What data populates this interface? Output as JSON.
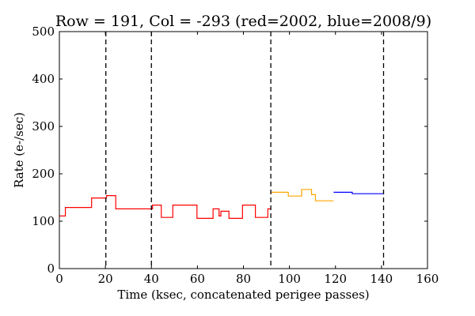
{
  "chart_data": {
    "type": "line",
    "title": "Row = 191, Col = -293 (red=2002, blue=2008/9)",
    "xlabel": "Time (ksec, concatenated perigee passes)",
    "ylabel": "Rate (e-/sec)",
    "xlim": [
      0,
      160
    ],
    "ylim": [
      0,
      500
    ],
    "xticks": [
      0,
      20,
      40,
      60,
      80,
      100,
      120,
      140,
      160
    ],
    "yticks": [
      0,
      100,
      200,
      300,
      400,
      500
    ],
    "grid": false,
    "step": true,
    "series": [
      {
        "color": "#ff0000",
        "points": [
          [
            0.0,
            111
          ],
          [
            2.6,
            111
          ],
          [
            2.6,
            129
          ],
          [
            14.0,
            129
          ],
          [
            14.0,
            149
          ],
          [
            20.5,
            149
          ],
          [
            20.5,
            154
          ],
          [
            24.5,
            154
          ],
          [
            24.5,
            126
          ],
          [
            40.5,
            126
          ],
          [
            40.5,
            134
          ],
          [
            44.3,
            134
          ],
          [
            44.3,
            108
          ],
          [
            49.3,
            108
          ],
          [
            49.3,
            134
          ],
          [
            59.8,
            134
          ],
          [
            59.8,
            106
          ],
          [
            66.8,
            106
          ],
          [
            66.8,
            126
          ],
          [
            69.4,
            126
          ],
          [
            69.4,
            111
          ],
          [
            70.2,
            111
          ],
          [
            70.2,
            121
          ],
          [
            73.7,
            121
          ],
          [
            73.7,
            106
          ],
          [
            79.6,
            106
          ],
          [
            79.6,
            134
          ],
          [
            85.2,
            134
          ],
          [
            85.2,
            108
          ],
          [
            90.6,
            108
          ],
          [
            90.6,
            126
          ],
          [
            91.9,
            126
          ]
        ]
      },
      {
        "color": "#ffa500",
        "points": [
          [
            91.9,
            161
          ],
          [
            99.5,
            161
          ],
          [
            99.5,
            153
          ],
          [
            105.3,
            153
          ],
          [
            105.3,
            167
          ],
          [
            109.6,
            167
          ],
          [
            109.6,
            156
          ],
          [
            111.3,
            156
          ],
          [
            111.3,
            143
          ],
          [
            119.2,
            143
          ]
        ]
      },
      {
        "color": "#0000ff",
        "points": [
          [
            119.2,
            161
          ],
          [
            127.3,
            161
          ],
          [
            127.3,
            158
          ],
          [
            140.9,
            158
          ]
        ]
      }
    ],
    "vlines": {
      "style": "dashed",
      "color": "#000000",
      "x": [
        20.2,
        40.0,
        91.9,
        140.9
      ]
    }
  }
}
